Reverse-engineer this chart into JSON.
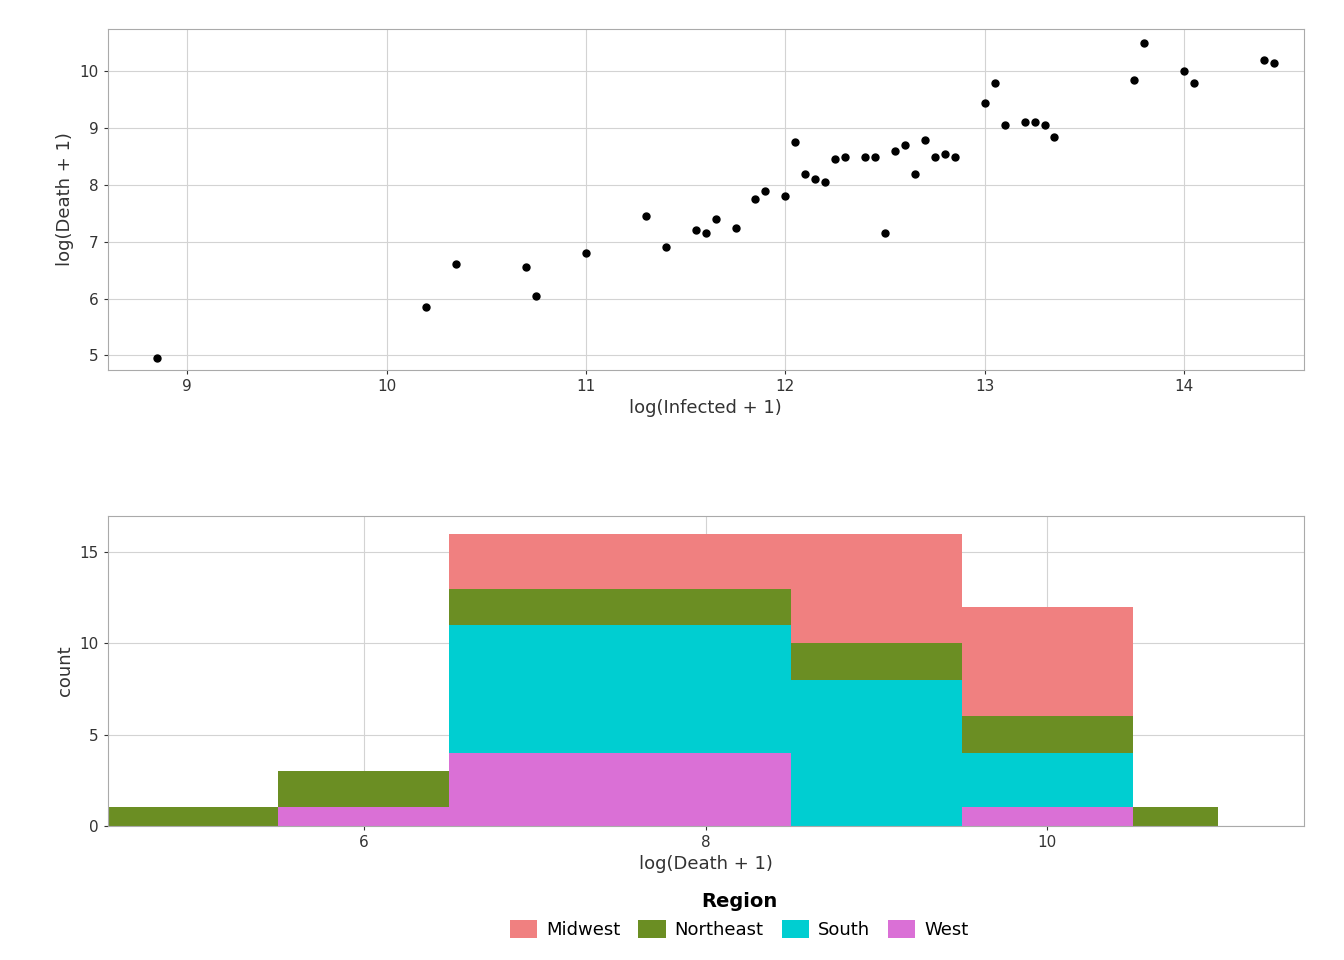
{
  "scatter_x": [
    8.85,
    10.2,
    10.35,
    10.7,
    10.75,
    11.0,
    11.3,
    11.4,
    11.55,
    11.6,
    11.65,
    11.75,
    11.85,
    11.9,
    12.0,
    12.05,
    12.1,
    12.15,
    12.2,
    12.25,
    12.3,
    12.4,
    12.45,
    12.5,
    12.55,
    12.6,
    12.65,
    12.7,
    12.75,
    12.8,
    12.85,
    13.0,
    13.05,
    13.1,
    13.2,
    13.25,
    13.3,
    13.35,
    13.75,
    13.8,
    14.0,
    14.05,
    14.4,
    14.45
  ],
  "scatter_y": [
    4.95,
    5.85,
    6.6,
    6.55,
    6.05,
    6.8,
    7.45,
    6.9,
    7.2,
    7.15,
    7.4,
    7.25,
    7.75,
    7.9,
    7.8,
    8.75,
    8.2,
    8.1,
    8.05,
    8.45,
    8.5,
    8.5,
    8.5,
    7.15,
    8.6,
    8.7,
    8.2,
    8.8,
    8.5,
    8.55,
    8.5,
    9.45,
    9.8,
    9.05,
    9.1,
    9.1,
    9.05,
    8.85,
    9.85,
    10.5,
    10.0,
    9.8,
    10.2,
    10.15
  ],
  "scatter_xlabel": "log(Infected + 1)",
  "scatter_ylabel": "log(Death + 1)",
  "scatter_xlim": [
    8.6,
    14.6
  ],
  "scatter_ylim": [
    4.75,
    10.75
  ],
  "scatter_xticks": [
    9,
    10,
    11,
    12,
    13,
    14
  ],
  "scatter_yticks": [
    5,
    6,
    7,
    8,
    9,
    10
  ],
  "hist_bin_edges": [
    4.5,
    5.5,
    6.5,
    7.5,
    8.5,
    9.5,
    10.5,
    11.0
  ],
  "hist_midwest": [
    0,
    0,
    3,
    3,
    6,
    6,
    0
  ],
  "hist_northeast": [
    1,
    2,
    2,
    2,
    2,
    2,
    1
  ],
  "hist_south": [
    0,
    0,
    7,
    7,
    8,
    3,
    0
  ],
  "hist_west": [
    0,
    1,
    4,
    4,
    0,
    1,
    0
  ],
  "hist_xlabel": "log(Death + 1)",
  "hist_ylabel": "count",
  "hist_xlim": [
    4.5,
    11.5
  ],
  "hist_ylim": [
    0,
    17
  ],
  "hist_xticks": [
    6,
    8,
    10
  ],
  "hist_yticks": [
    0,
    5,
    10,
    15
  ],
  "color_midwest": "#F08080",
  "color_northeast": "#6B8E23",
  "color_south": "#00CED1",
  "color_west": "#DA70D6",
  "legend_labels": [
    "Midwest",
    "Northeast",
    "South",
    "West"
  ],
  "background_color": "#FFFFFF",
  "grid_color": "#D3D3D3",
  "text_color": "#333333",
  "title_region": "Region"
}
